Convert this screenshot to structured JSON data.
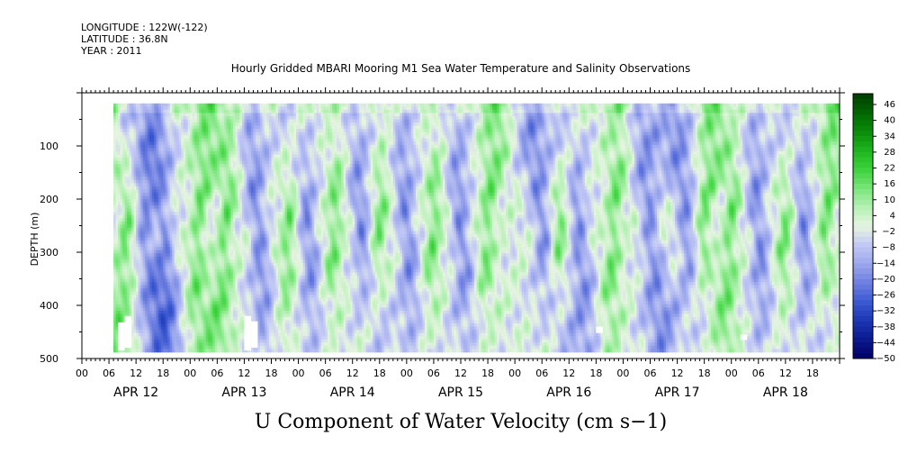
{
  "header": {
    "longitude": "LONGITUDE : 122W(-122)",
    "latitude": "LATITUDE : 36.8N",
    "year": "YEAR : 2011"
  },
  "chart_data": {
    "type": "heatmap",
    "title": "Hourly Gridded MBARI Mooring M1 Sea Water Temperature and Salinity Observations",
    "bottom_title": "U Component of Water Velocity (cm s−1)",
    "ylabel": "DEPTH (m)",
    "ylim": [
      0,
      500
    ],
    "y_inverted": true,
    "yticks": [
      100,
      200,
      300,
      400,
      500
    ],
    "yticklabels": [
      "100",
      "200",
      "300",
      "400",
      "500"
    ],
    "x_hour_labels": [
      "00",
      "06",
      "12",
      "18",
      "00",
      "06",
      "12",
      "18",
      "00",
      "06",
      "12",
      "18",
      "00",
      "06",
      "12",
      "18",
      "00",
      "06",
      "12",
      "18",
      "00",
      "06",
      "12",
      "18",
      "00",
      "06",
      "12",
      "18"
    ],
    "x_date_labels": [
      "APR 12",
      "APR 13",
      "APR 14",
      "APR 15",
      "APR 16",
      "APR 17",
      "APR 18"
    ],
    "data_x_range_hours": [
      7,
      168
    ],
    "data_depth_range": [
      20,
      485
    ],
    "colorbar": {
      "labels": [
        "46",
        "40",
        "34",
        "28",
        "22",
        "16",
        "10",
        "4",
        "−2",
        "−8",
        "−14",
        "−20",
        "−26",
        "−32",
        "−38",
        "−44",
        "−50"
      ],
      "min": -50,
      "max": 50,
      "colors_low_to_high": [
        "#000066",
        "#0a1a8c",
        "#1c36b4",
        "#3c5ad2",
        "#6e7fe0",
        "#9ca8ec",
        "#c2c8f5",
        "#e6f5e0",
        "#b4f0b4",
        "#78e678",
        "#3cd23c",
        "#1eb41e",
        "#0a8c0a",
        "#006600",
        "#003c00"
      ]
    },
    "blue_band_hours": [
      14,
      18,
      39,
      50,
      62,
      72,
      84,
      102,
      110,
      126,
      134,
      150,
      160
    ],
    "green_band_hours": [
      3,
      10,
      26,
      32,
      46,
      56,
      66,
      78,
      90,
      106,
      118,
      138,
      144,
      156,
      165
    ]
  }
}
